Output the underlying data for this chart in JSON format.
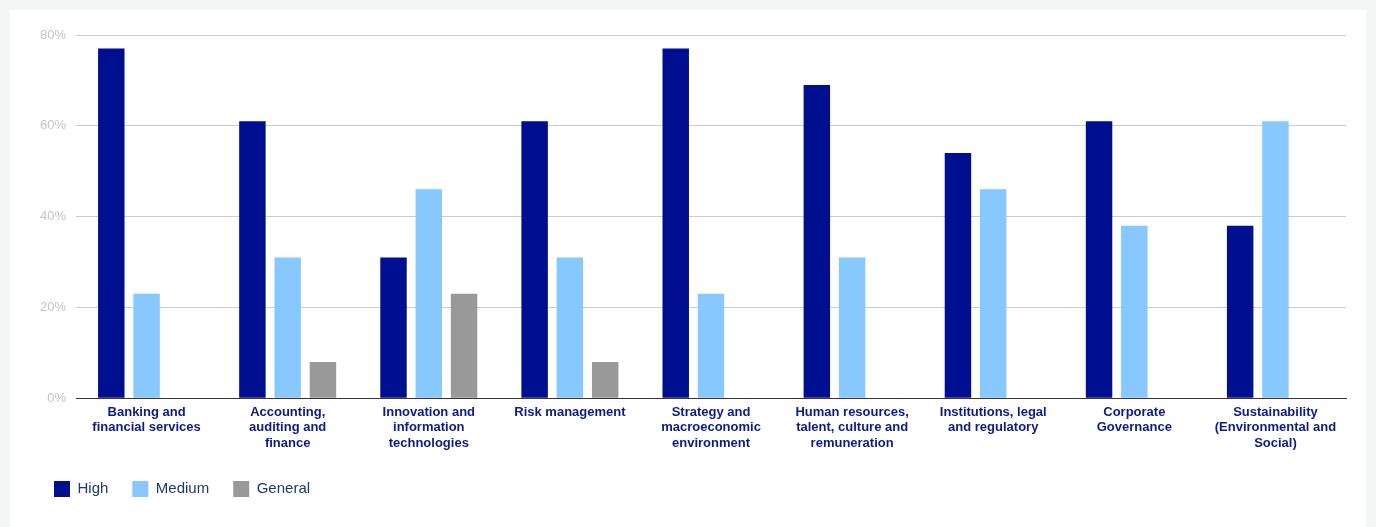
{
  "chart_data": {
    "type": "bar",
    "categories": [
      "Banking and financial services",
      "Accounting, auditing and finance",
      "Innovation and information technologies",
      "Risk management",
      "Strategy and macroeconomic environment",
      "Human resources, talent, culture and remuneration",
      "Institutions, legal and regulatory",
      "Corporate Governance",
      "Sustainability (Environmental and Social)"
    ],
    "series": [
      {
        "name": "High",
        "color": "#000f8f",
        "values": [
          77,
          61,
          31,
          61,
          77,
          69,
          54,
          61,
          38
        ]
      },
      {
        "name": "Medium",
        "color": "#86c8ff",
        "values": [
          23,
          31,
          46,
          31,
          23,
          31,
          46,
          38,
          61
        ]
      },
      {
        "name": "General",
        "color": "#999999",
        "values": [
          0,
          8,
          23,
          8,
          0,
          0,
          0,
          0,
          0
        ]
      }
    ],
    "ylim": [
      0,
      80
    ],
    "yticks": [
      {
        "value": 0,
        "label": "0%"
      },
      {
        "value": 20,
        "label": "20%"
      },
      {
        "value": 40,
        "label": "40%"
      },
      {
        "value": 60,
        "label": "60%"
      },
      {
        "value": 80,
        "label": "80%"
      }
    ],
    "grid": "y",
    "legend": "bottom left"
  }
}
